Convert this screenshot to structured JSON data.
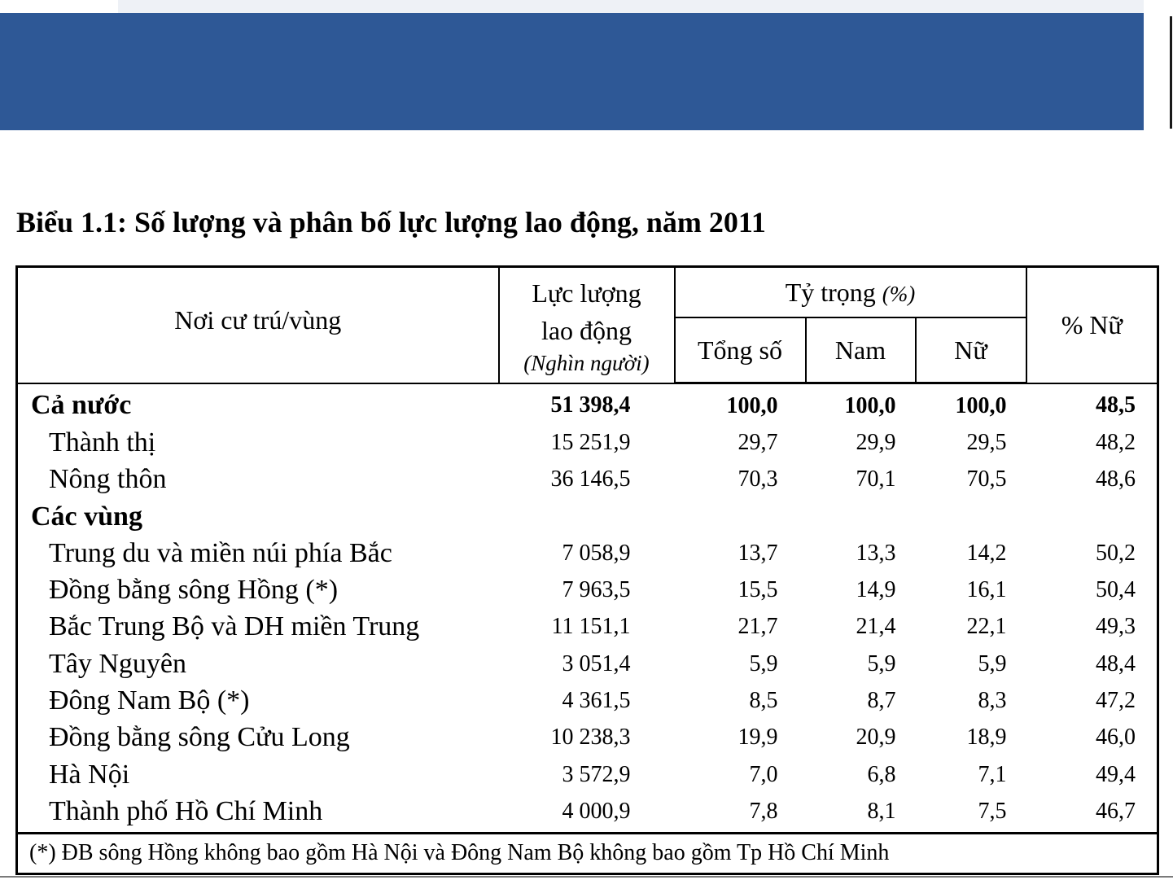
{
  "title": "Biểu 1.1: Số lượng và phân bố lực lượng lao động, năm 2011",
  "headers": {
    "region": "Nơi cư trú/vùng",
    "labor_force_line1": "Lực lượng",
    "labor_force_line2": "lao động",
    "labor_force_unit": "(Nghìn người)",
    "share": "Tỷ trọng",
    "share_unit": "(%)",
    "total": "Tổng số",
    "male": "Nam",
    "female": "Nữ",
    "pct_female": "% Nữ"
  },
  "rows": [
    {
      "name": "Cả nước",
      "labor": "51 398,4",
      "total": "100,0",
      "male": "100,0",
      "female": "100,0",
      "pct_female": "48,5"
    },
    {
      "name": "Thành thị",
      "labor": "15 251,9",
      "total": "29,7",
      "male": "29,9",
      "female": "29,5",
      "pct_female": "48,2"
    },
    {
      "name": "Nông thôn",
      "labor": "36 146,5",
      "total": "70,3",
      "male": "70,1",
      "female": "70,5",
      "pct_female": "48,6"
    },
    {
      "name": "Các vùng",
      "labor": "",
      "total": "",
      "male": "",
      "female": "",
      "pct_female": ""
    },
    {
      "name": "Trung du và miền núi phía Bắc",
      "labor": "7 058,9",
      "total": "13,7",
      "male": "13,3",
      "female": "14,2",
      "pct_female": "50,2"
    },
    {
      "name": "Đồng bằng sông Hồng (*)",
      "labor": "7 963,5",
      "total": "15,5",
      "male": "14,9",
      "female": "16,1",
      "pct_female": "50,4"
    },
    {
      "name": "Bắc Trung Bộ và DH miền Trung",
      "labor": "11 151,1",
      "total": "21,7",
      "male": "21,4",
      "female": "22,1",
      "pct_female": "49,3"
    },
    {
      "name": "Tây Nguyên",
      "labor": "3 051,4",
      "total": "5,9",
      "male": "5,9",
      "female": "5,9",
      "pct_female": "48,4"
    },
    {
      "name": "Đông Nam Bộ (*)",
      "labor": "4 361,5",
      "total": "8,5",
      "male": "8,7",
      "female": "8,3",
      "pct_female": "47,2"
    },
    {
      "name": "Đồng bằng sông Cửu Long",
      "labor": "10 238,3",
      "total": "19,9",
      "male": "20,9",
      "female": "18,9",
      "pct_female": "46,0"
    },
    {
      "name": "Hà Nội",
      "labor": "3 572,9",
      "total": "7,0",
      "male": "6,8",
      "female": "7,1",
      "pct_female": "49,4"
    },
    {
      "name": "Thành phố Hồ Chí Minh",
      "labor": "4 000,9",
      "total": "7,8",
      "male": "8,1",
      "female": "7,5",
      "pct_female": "46,7"
    }
  ],
  "footnote": "(*) ĐB sông Hồng không bao gồm Hà Nội và Đông Nam Bộ không bao gồm Tp Hồ Chí Minh",
  "colors": {
    "banner": "#2e5896",
    "top_strip": "#eef1f6",
    "text": "#000000"
  }
}
